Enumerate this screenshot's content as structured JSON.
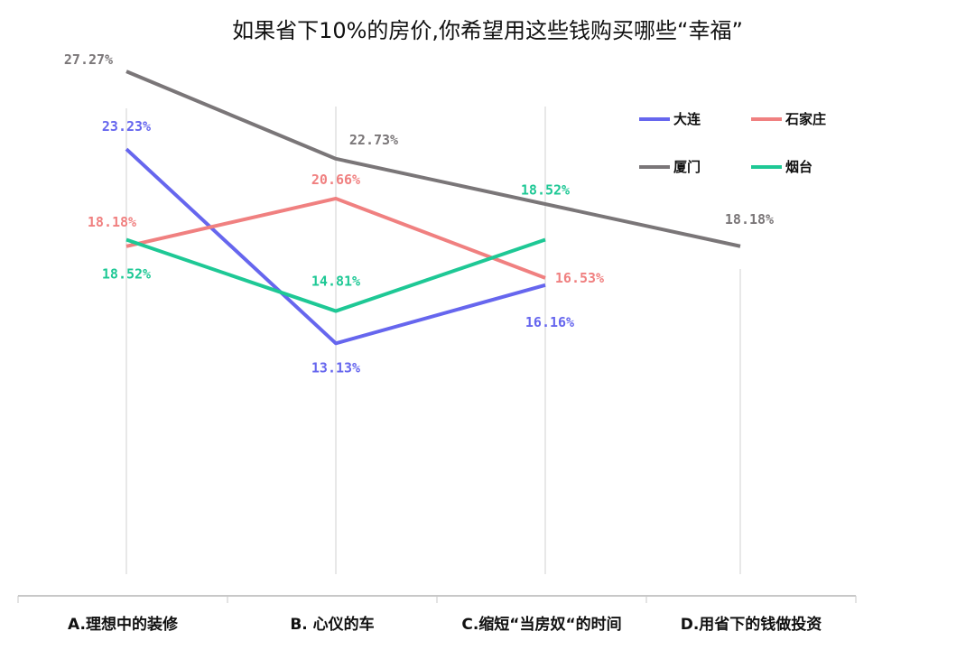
{
  "chart_data": {
    "type": "line",
    "title": "如果省下10%的房价,你希望用这些钱购买哪些“幸福”",
    "categories": [
      "A.理想中的装修",
      "B. 心仪的车",
      "C.缩短“当房奴“的时间",
      "D.用省下的钱做投资"
    ],
    "ylim": [
      0,
      30
    ],
    "grid": "vertical",
    "legend_position": "top-right",
    "series": [
      {
        "name": "大连",
        "color": "#6666ee",
        "values": [
          23.23,
          13.13,
          16.16,
          null
        ],
        "labels": [
          "23.23%",
          "13.13%",
          "16.16%",
          null
        ]
      },
      {
        "name": "石家庄",
        "color": "#f08080",
        "values": [
          18.18,
          20.66,
          16.53,
          null
        ],
        "labels": [
          "18.18%",
          "20.66%",
          "16.53%",
          null
        ]
      },
      {
        "name": "厦门",
        "color": "#7a7678",
        "values": [
          27.27,
          22.73,
          null,
          18.18
        ],
        "labels": [
          "27.27%",
          "22.73%",
          null,
          "18.18%"
        ]
      },
      {
        "name": "烟台",
        "color": "#1ec895",
        "values": [
          18.52,
          14.81,
          18.52,
          null
        ],
        "labels": [
          "18.52%",
          "14.81%",
          "18.52%",
          null
        ]
      }
    ]
  }
}
